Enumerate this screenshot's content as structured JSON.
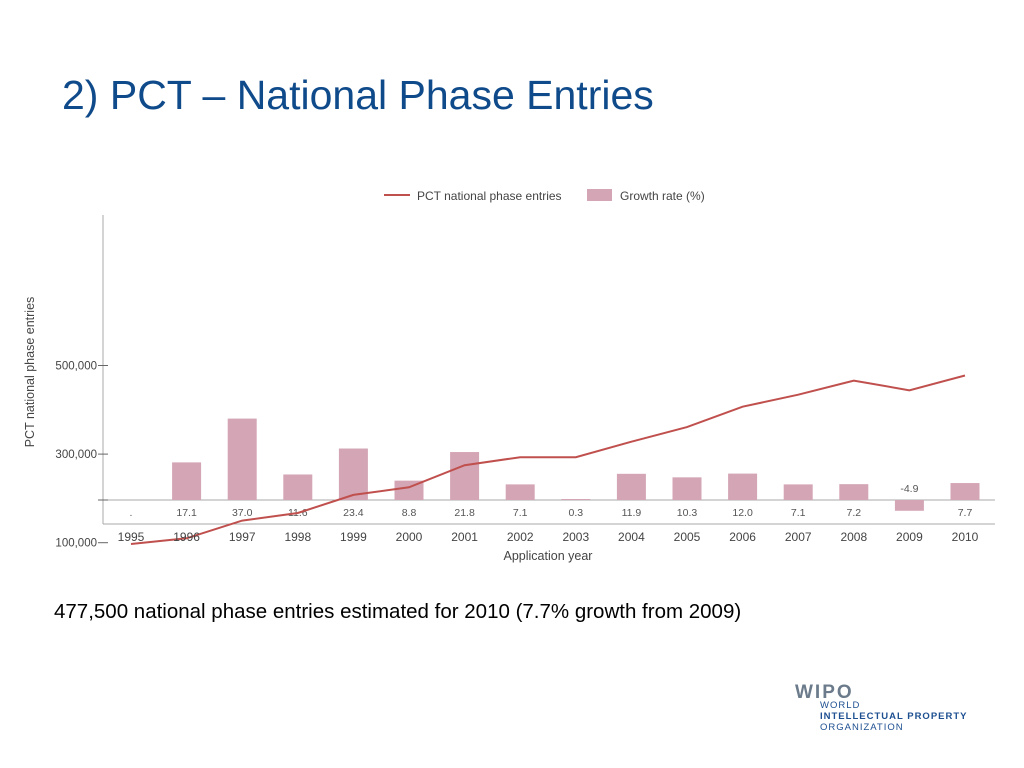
{
  "slide": {
    "title": "2) PCT –  National Phase Entries",
    "caption": "477,500 national phase entries estimated for 2010 (7.7% growth from 2009)"
  },
  "logo": {
    "word": "WIPO",
    "line1": "WORLD",
    "line2": "INTELLECTUAL PROPERTY",
    "line3": "ORGANIZATION"
  },
  "colors": {
    "line": "#c0504d",
    "bar": "#d4a5b5",
    "title": "#0f4a8a",
    "axis": "#aaaaaa"
  },
  "chart_data": {
    "type": "bar+line",
    "categories": [
      "1995",
      "1996",
      "1997",
      "1998",
      "1999",
      "2000",
      "2001",
      "2002",
      "2003",
      "2004",
      "2005",
      "2006",
      "2007",
      "2008",
      "2009",
      "2010"
    ],
    "xlabel": "Application year",
    "ylabel": "PCT national phase entries",
    "y_ticks": [
      "500,000",
      "300,000",
      "100,000"
    ],
    "y_tick_values": [
      500000,
      300000,
      100000
    ],
    "growth_labels": [
      ".",
      "17.1",
      "37.0",
      "11.6",
      "23.4",
      "8.8",
      "21.8",
      "7.1",
      "0.3",
      "11.9",
      "10.3",
      "12.0",
      "7.1",
      "7.2",
      "",
      "7.7"
    ],
    "negative_label": "-4.9",
    "legend": {
      "position": "top",
      "line_name": "PCT national phase entries",
      "bar_name": "Growth rate (%)"
    },
    "series": [
      {
        "name": "PCT national phase entries",
        "kind": "line",
        "values": [
          97000,
          110000,
          150000,
          167000,
          208000,
          225000,
          275000,
          293000,
          293000,
          328000,
          361000,
          407000,
          434000,
          466000,
          444000,
          477500
        ]
      },
      {
        "name": "Growth rate (%)",
        "kind": "bar",
        "values": [
          null,
          17.1,
          37.0,
          11.6,
          23.4,
          8.8,
          21.8,
          7.1,
          0.3,
          11.9,
          10.3,
          12.0,
          7.1,
          7.2,
          -4.9,
          7.7
        ]
      }
    ]
  }
}
